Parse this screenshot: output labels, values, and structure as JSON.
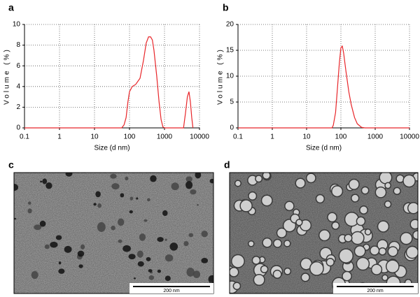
{
  "chart_data": [
    {
      "type": "line",
      "panel_label": "a",
      "xlabel": "Size (d nm)",
      "ylabel": "Volume (%)",
      "log_x": true,
      "grid": true,
      "color": "#e8262a",
      "xlim": [
        0.1,
        10000
      ],
      "xticks": [
        0.1,
        1,
        10,
        100,
        1000,
        10000
      ],
      "ylim": [
        0,
        10
      ],
      "yticks": [
        0,
        2,
        4,
        6,
        8,
        10
      ],
      "x": [
        0.1,
        60,
        70,
        80,
        90,
        100,
        120,
        150,
        200,
        250,
        300,
        350,
        400,
        450,
        500,
        600,
        700,
        800,
        900,
        1000,
        3500,
        4000,
        4500,
        5000,
        5500,
        6000,
        6500
      ],
      "values": [
        0,
        0,
        0.3,
        1,
        2.5,
        3.5,
        4,
        4.2,
        4.8,
        6.5,
        8.2,
        8.8,
        8.8,
        8.5,
        7.5,
        5,
        2.5,
        0.8,
        0.1,
        0,
        0,
        1.5,
        3,
        3.5,
        2.5,
        1,
        0
      ]
    },
    {
      "type": "line",
      "panel_label": "b",
      "xlabel": "Size (d nm)",
      "ylabel": "Volume (%)",
      "log_x": true,
      "grid": true,
      "color": "#e8262a",
      "xlim": [
        0.1,
        10000
      ],
      "xticks": [
        0.1,
        1,
        10,
        100,
        1000,
        10000
      ],
      "ylim": [
        0,
        20
      ],
      "yticks": [
        0,
        5,
        10,
        15,
        20
      ],
      "x": [
        0.1,
        55,
        60,
        70,
        80,
        90,
        100,
        110,
        120,
        140,
        170,
        200,
        250,
        300,
        400,
        500,
        10000
      ],
      "values": [
        0,
        0,
        0.5,
        3,
        8,
        12.5,
        15.5,
        15.8,
        14.5,
        11,
        7,
        4.5,
        2,
        0.8,
        0.1,
        0,
        0
      ]
    }
  ],
  "panels": [
    {
      "label": "c",
      "scale_bar": "200 nm"
    },
    {
      "label": "d",
      "scale_bar": "200 nm"
    }
  ]
}
